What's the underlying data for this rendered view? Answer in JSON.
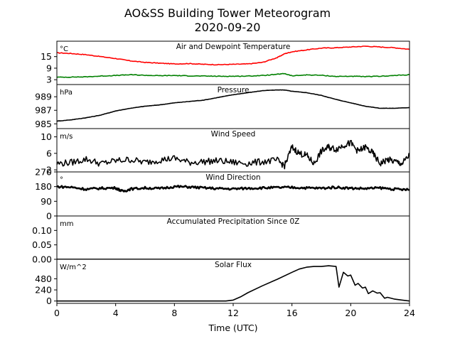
{
  "figure": {
    "title_line1": "AO&SS Building Tower Meteorogram",
    "title_line2": "2020-09-20",
    "xlabel": "Time (UTC)",
    "xticks": [
      0,
      4,
      8,
      12,
      16,
      20,
      24
    ]
  },
  "chart_data": [
    {
      "type": "line",
      "title": "Air and Dewpoint Temperature",
      "unit": "°C",
      "ylim": [
        0.5,
        23
      ],
      "yticks": [
        3,
        9,
        15
      ],
      "series": [
        {
          "color": "#ff0000",
          "x": [
            0,
            1,
            2,
            3,
            4,
            5,
            6,
            7,
            8,
            9,
            10,
            11,
            12,
            13,
            14,
            15,
            15.5,
            16,
            17,
            18,
            19,
            20,
            21,
            22,
            23,
            24
          ],
          "y": [
            17,
            16.6,
            16,
            15,
            14,
            12.8,
            12,
            11.6,
            11.2,
            11.4,
            11,
            10.8,
            11,
            11.2,
            12,
            14.5,
            16.5,
            17.5,
            18.5,
            19.4,
            19.6,
            20,
            20.4,
            20,
            19.6,
            18.8
          ]
        },
        {
          "color": "#008000",
          "x": [
            0,
            1,
            2,
            3,
            4,
            5,
            6,
            7,
            8,
            9,
            10,
            11,
            12,
            13,
            14,
            15,
            15.5,
            16,
            17,
            18,
            19,
            20,
            21,
            22,
            23,
            24
          ],
          "y": [
            4.3,
            4.4,
            4.5,
            4.9,
            5.2,
            5.6,
            5.3,
            5.1,
            5.2,
            5.0,
            4.9,
            4.8,
            4.8,
            4.9,
            5.2,
            5.8,
            6.2,
            5.0,
            5.5,
            5.3,
            4.7,
            4.8,
            4.6,
            4.8,
            5.2,
            5.6
          ]
        }
      ]
    },
    {
      "type": "line",
      "title": "Pressure",
      "unit": "hPa",
      "ylim": [
        984.3,
        990.8
      ],
      "yticks": [
        985,
        987,
        989
      ],
      "series": [
        {
          "color": "#000000",
          "x": [
            0,
            1,
            2,
            3,
            4,
            5,
            6,
            7,
            8,
            9,
            10,
            11,
            12,
            13,
            14,
            15,
            15.5,
            16,
            17,
            18,
            19,
            20,
            21,
            22,
            23,
            24
          ],
          "y": [
            985.4,
            985.6,
            985.9,
            986.3,
            986.9,
            987.3,
            987.6,
            987.8,
            988.1,
            988.3,
            988.5,
            988.9,
            989.3,
            989.6,
            989.9,
            990.0,
            990.0,
            989.8,
            989.6,
            989.2,
            988.6,
            988.1,
            987.6,
            987.3,
            987.3,
            987.4
          ]
        }
      ]
    },
    {
      "type": "line",
      "title": "Wind Speed",
      "unit": "m/s",
      "ylim": [
        1.5,
        12
      ],
      "yticks": [
        2,
        6,
        10
      ],
      "series": [
        {
          "color": "#000000",
          "x": [
            0,
            1,
            2,
            3,
            4,
            5,
            6,
            7,
            8,
            9,
            10,
            11,
            12,
            13,
            14,
            15,
            15.5,
            16,
            16.5,
            17,
            17.5,
            18,
            18.5,
            19,
            19.5,
            20,
            20.5,
            21,
            21.5,
            22,
            22.5,
            23,
            23.5,
            24
          ],
          "y": [
            3.5,
            3.8,
            4.6,
            3.5,
            4.2,
            4.5,
            3.8,
            4.4,
            4.8,
            3.8,
            4.0,
            4.2,
            3.8,
            3.6,
            4.0,
            4.3,
            3.0,
            7.5,
            6.0,
            5.5,
            3.5,
            6.5,
            7.5,
            7.0,
            8.0,
            8.5,
            6.5,
            7.5,
            6.0,
            3.5,
            4.5,
            4.0,
            3.5,
            5.5
          ]
        }
      ]
    },
    {
      "type": "line",
      "title": "Wind Direction",
      "unit": "°",
      "ylim": [
        0,
        270
      ],
      "yticks": [
        0,
        90,
        180,
        270
      ],
      "series": [
        {
          "color": "#000000",
          "x": [
            0,
            1,
            2,
            3,
            4,
            4.5,
            5,
            6,
            7,
            8,
            9,
            10,
            11,
            12,
            13,
            14,
            15,
            16,
            17,
            18,
            19,
            20,
            21,
            22,
            23,
            24
          ],
          "y": [
            180,
            176,
            164,
            170,
            172,
            150,
            165,
            172,
            168,
            180,
            178,
            172,
            168,
            166,
            170,
            172,
            174,
            175,
            172,
            170,
            176,
            170,
            168,
            172,
            164,
            160
          ]
        }
      ]
    },
    {
      "type": "line",
      "title": "Accumulated Precipitation Since 0Z",
      "unit": "mm",
      "ylim": [
        0,
        0.15
      ],
      "yticks": [
        0.0,
        0.05,
        0.1
      ],
      "series": [
        {
          "color": "#000000",
          "x": [
            0,
            24
          ],
          "y": [
            0,
            0
          ]
        }
      ]
    },
    {
      "type": "line",
      "title": "Solar Flux",
      "unit": "W/m^2",
      "ylim": [
        -50,
        900
      ],
      "yticks": [
        0,
        240,
        480
      ],
      "series": [
        {
          "color": "#000000",
          "x": [
            0,
            11.5,
            12,
            12.5,
            13,
            14,
            15,
            16,
            16.5,
            17,
            17.5,
            18,
            18.5,
            19,
            19.2,
            19.5,
            19.8,
            20,
            20.3,
            20.5,
            20.8,
            21,
            21.2,
            21.5,
            21.8,
            22,
            22.3,
            22.5,
            23,
            23.5,
            24
          ],
          "y": [
            0,
            0,
            20,
            90,
            180,
            330,
            470,
            620,
            690,
            730,
            745,
            745,
            760,
            745,
            300,
            620,
            540,
            560,
            340,
            380,
            280,
            300,
            160,
            220,
            170,
            180,
            60,
            80,
            40,
            20,
            0
          ]
        }
      ]
    }
  ]
}
